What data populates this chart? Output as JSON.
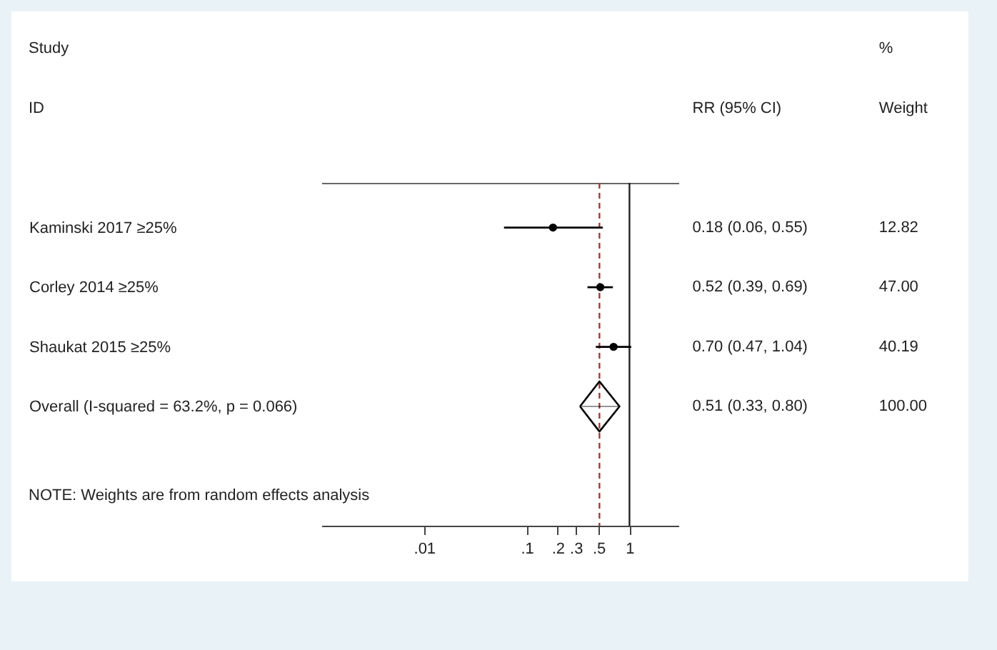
{
  "chart_data": {
    "type": "scatter",
    "orientation": "horizontal",
    "log": "x",
    "categories": [
      "Kaminski 2017 ≥25%",
      "Corley 2014 ≥25%",
      "Shaukat 2015 ≥25%",
      "Overall  (I-squared = 63.2%, p = 0.066)"
    ],
    "series": [
      {
        "marker": "circle",
        "color": "#000000",
        "values": [
          0.18,
          0.52,
          0.7,
          null
        ],
        "errors": [
          [
            0.06,
            0.55
          ],
          [
            0.39,
            0.69
          ],
          [
            0.47,
            1.04
          ],
          null
        ]
      },
      {
        "marker": "diamond",
        "color": "#000000",
        "values": [
          null,
          null,
          null,
          0.51
        ],
        "errors": [
          null,
          null,
          null,
          [
            0.33,
            0.8
          ]
        ]
      }
    ],
    "xlim": [
      0.001,
      3
    ],
    "xticks": [
      {
        "value": 0.01,
        "label": ".01"
      },
      {
        "value": 0.1,
        "label": ".1"
      },
      {
        "value": 0.2,
        "label": ".2"
      },
      {
        "value": 0.3,
        "label": ".3"
      },
      {
        "value": 0.5,
        "label": ".5"
      },
      1
    ],
    "ref_lines": [
      {
        "axis": "x",
        "value": 1,
        "color": "#222222"
      },
      {
        "axis": "x",
        "value": 0.51,
        "color": "#a33a33",
        "line_style": "dashed"
      }
    ],
    "annotations": [
      "Study",
      "ID",
      "RR (95% CI)",
      "%",
      "Weight",
      "NOTE: Weights are from random effects analysis",
      "0.18 (0.06, 0.55)",
      "0.52 (0.39, 0.69)",
      "0.70 (0.47, 1.04)",
      "0.51 (0.33, 0.80)",
      "12.82",
      "47.00",
      "40.19",
      "100.00"
    ]
  }
}
